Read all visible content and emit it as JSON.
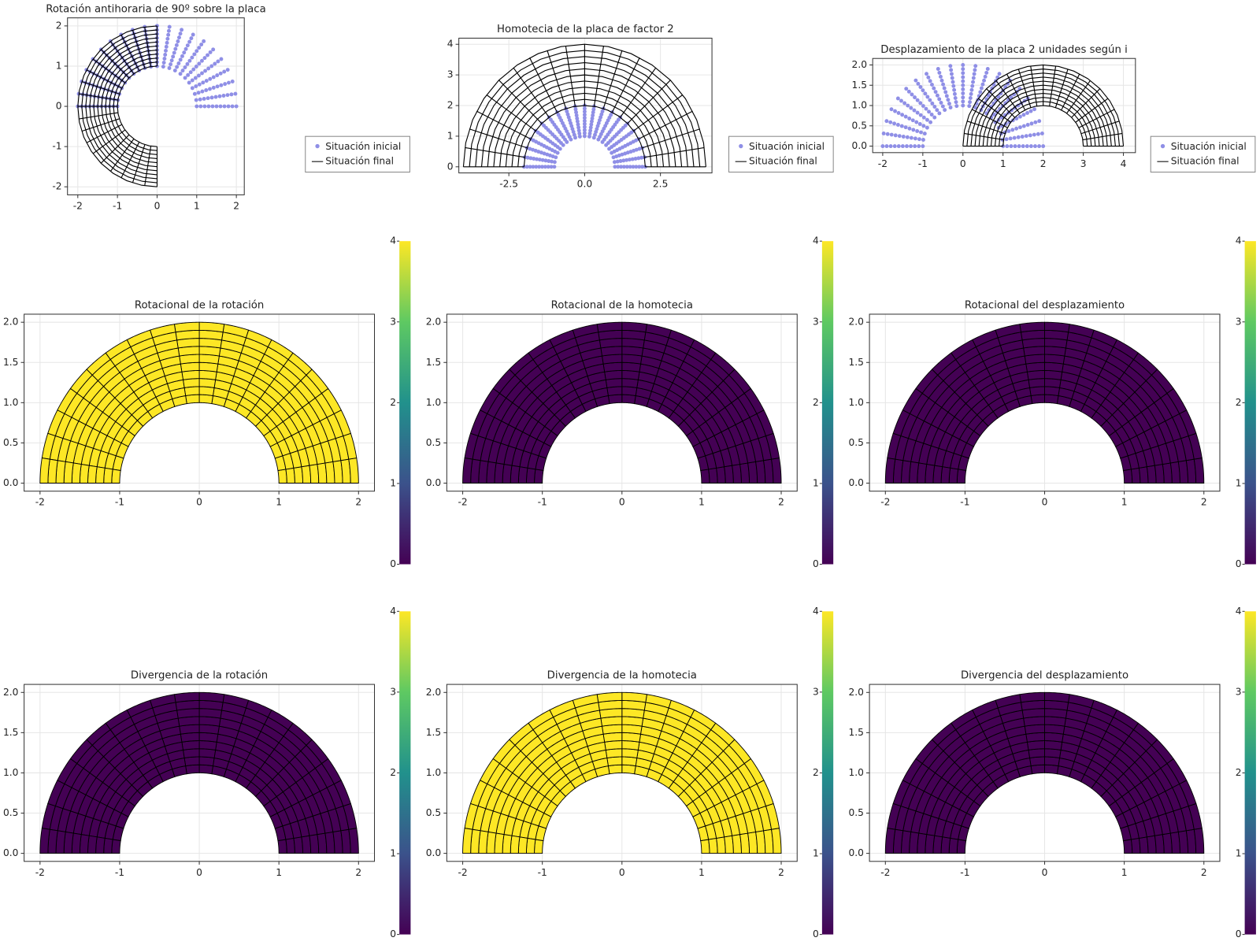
{
  "mesh": {
    "r": [
      1,
      1.1,
      1.2,
      1.3,
      1.4,
      1.5,
      1.6,
      1.7,
      1.8,
      1.9,
      2
    ],
    "theta": [
      0,
      9,
      18,
      27,
      36,
      45,
      54,
      63,
      72,
      81,
      90,
      99,
      108,
      117,
      126,
      135,
      144,
      153,
      162,
      171,
      180
    ]
  },
  "chart_data": [
    {
      "type": "transform",
      "title": "Rotación antihoraria de 90º sobre la placa",
      "transform": {
        "rotate": 90
      },
      "xlim": [
        -2.26,
        2.2
      ],
      "ylim": [
        -2.2,
        2.2
      ],
      "xticks": [
        -2,
        -1,
        0,
        1,
        2
      ],
      "yticks": [
        -2,
        -1,
        0,
        1,
        2
      ],
      "grid": true,
      "series": [
        {
          "name": "Situación inicial",
          "color": "#8f8fe6"
        },
        {
          "name": "Situación final",
          "color": "#000000"
        }
      ]
    },
    {
      "type": "transform",
      "title": "Homotecia de la placa de factor 2",
      "transform": {
        "scale": 2
      },
      "xlim": [
        -4.15,
        4.2
      ],
      "ylim": [
        -0.2,
        4.2
      ],
      "xticks": [
        -2.5,
        {
          "value": 0,
          "label": "0.0"
        },
        2.5
      ],
      "yticks": [
        0,
        1,
        2,
        3,
        4
      ],
      "grid": true,
      "series": [
        {
          "name": "Situación inicial",
          "color": "#8f8fe6"
        },
        {
          "name": "Situación final",
          "color": "#000000"
        }
      ]
    },
    {
      "type": "transform",
      "title": "Desplazamiento de la placa 2 unidades según i",
      "transform": {
        "shift": [
          2,
          0
        ]
      },
      "xlim": [
        -2.25,
        4.3
      ],
      "ylim": [
        -0.16,
        2.16
      ],
      "xticks": [
        -2,
        -1,
        0,
        1,
        2,
        3,
        4
      ],
      "yticks": [
        {
          "value": 0,
          "label": "0.0"
        },
        0.5,
        {
          "value": 1,
          "label": "1.0"
        },
        1.5,
        {
          "value": 2,
          "label": "2.0"
        }
      ],
      "grid": true,
      "series": [
        {
          "name": "Situación inicial",
          "color": "#8f8fe6"
        },
        {
          "name": "Situación final",
          "color": "#000000"
        }
      ]
    },
    {
      "type": "heatmap",
      "title": "Rotacional de la rotación",
      "value": 4
    },
    {
      "type": "heatmap",
      "title": "Rotacional de la homotecia",
      "value": 0
    },
    {
      "type": "heatmap",
      "title": "Rotacional del desplazamiento",
      "value": 0
    },
    {
      "type": "heatmap",
      "title": "Divergencia de la rotación",
      "value": 0
    },
    {
      "type": "heatmap",
      "title": "Divergencia de la homotecia",
      "value": 4
    },
    {
      "type": "heatmap",
      "title": "Divergencia del desplazamiento",
      "value": 0
    }
  ],
  "heatmap_axes": {
    "xlim": [
      -2.2,
      2.2
    ],
    "ylim": [
      -0.1,
      2.1
    ],
    "xticks": [
      -2,
      -1,
      0,
      1,
      2
    ],
    "yticks": [
      {
        "value": 0,
        "label": "0.0"
      },
      0.5,
      {
        "value": 1,
        "label": "1.0"
      },
      1.5,
      {
        "value": 2,
        "label": "2.0"
      }
    ],
    "grid": true,
    "clim": [
      0,
      4
    ],
    "cticks": [
      0,
      1,
      2,
      3,
      4
    ],
    "colormap": [
      "#440154",
      "#3b528b",
      "#21918c",
      "#5ec962",
      "#fde725"
    ]
  }
}
